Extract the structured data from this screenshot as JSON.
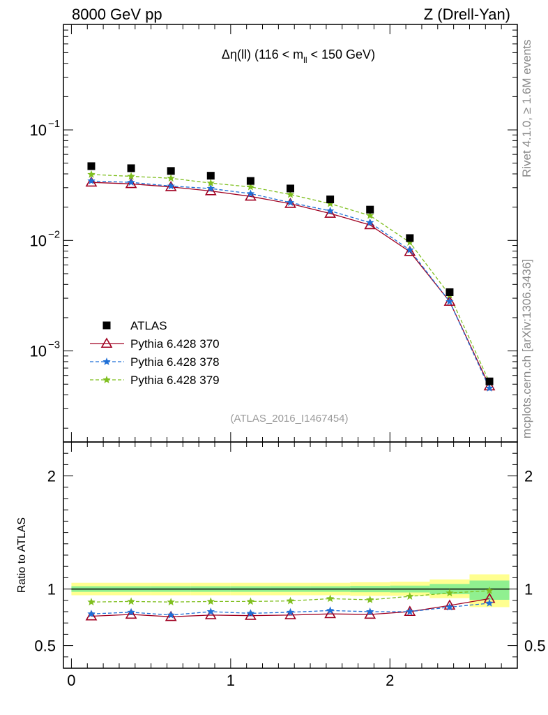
{
  "header": {
    "left_label": "8000 GeV pp",
    "right_label": "Z (Drell-Yan)"
  },
  "side_labels": {
    "rivet": "Rivet 4.1.0, ≥ 1.6M events",
    "mcplots": "mcplots.cern.ch [arXiv:1306.3436]"
  },
  "analysis_ref": "(ATLAS_2016_I1467454)",
  "colors": {
    "atlas": "#000000",
    "p370": "#a00020",
    "p378": "#1f6fd6",
    "p379": "#7fbf1f",
    "band_yellow": "#ffff90",
    "band_green": "#90f090"
  },
  "chart_data": [
    {
      "type": "scatter",
      "title": "Δη(ll) (116 < m_ll < 150 GeV)",
      "title_parts": {
        "lhs": "Δη(ll) (116 < m",
        "sub": "ll",
        "rhs": " < 150 GeV)"
      },
      "xlabel": "",
      "ylabel": "",
      "yscale": "log",
      "xlim": [
        -0.05,
        2.8
      ],
      "ylim": [
        0.00015,
        0.9
      ],
      "yticks": [
        0.001,
        0.01,
        0.1
      ],
      "ytick_labels": [
        {
          "base": "10",
          "exp": "−3"
        },
        {
          "base": "10",
          "exp": "−2"
        },
        {
          "base": "10",
          "exp": "−1"
        }
      ],
      "x": [
        0.125,
        0.375,
        0.625,
        0.875,
        1.125,
        1.375,
        1.625,
        1.875,
        2.125,
        2.375,
        2.625
      ],
      "series": [
        {
          "name": "ATLAS",
          "key": "atlas",
          "marker": "square",
          "line": "none",
          "values": [
            0.047,
            0.045,
            0.0425,
            0.0385,
            0.0345,
            0.0295,
            0.0235,
            0.019,
            0.0105,
            0.0034,
            0.00053
          ]
        },
        {
          "name": "Pythia 6.428 370",
          "key": "p370",
          "marker": "triangle-open",
          "line": "solid",
          "values": [
            0.0335,
            0.0325,
            0.0305,
            0.028,
            0.025,
            0.0215,
            0.0175,
            0.0138,
            0.0079,
            0.0028,
            0.00048
          ]
        },
        {
          "name": "Pythia 6.428 378",
          "key": "p378",
          "marker": "star",
          "line": "dashed",
          "values": [
            0.0345,
            0.0335,
            0.031,
            0.0295,
            0.0265,
            0.022,
            0.0185,
            0.0145,
            0.0082,
            0.0028,
            0.00046
          ]
        },
        {
          "name": "Pythia 6.428 379",
          "key": "p379",
          "marker": "star",
          "line": "dashed",
          "values": [
            0.0395,
            0.038,
            0.0365,
            0.033,
            0.0305,
            0.026,
            0.0215,
            0.0168,
            0.0096,
            0.0032,
            0.00052
          ]
        }
      ],
      "legend_position": "lower-left"
    },
    {
      "type": "scatter",
      "ylabel": "Ratio to ATLAS",
      "xlim": [
        -0.05,
        2.8
      ],
      "ylim": [
        0.3,
        2.3
      ],
      "yticks": [
        0.5,
        1,
        2
      ],
      "ytick_labels": [
        "0.5",
        "1",
        "2"
      ],
      "xticks": [
        0,
        1,
        2
      ],
      "xtick_labels": [
        "0",
        "1",
        "2"
      ],
      "x_edges": [
        0,
        0.25,
        0.5,
        0.75,
        1.0,
        1.25,
        1.5,
        1.75,
        2.0,
        2.25,
        2.5,
        2.75
      ],
      "x": [
        0.125,
        0.375,
        0.625,
        0.875,
        1.125,
        1.375,
        1.625,
        1.875,
        2.125,
        2.375,
        2.625
      ],
      "band_total": [
        [
          0.945,
          1.055
        ],
        [
          0.945,
          1.055
        ],
        [
          0.945,
          1.055
        ],
        [
          0.945,
          1.055
        ],
        [
          0.945,
          1.055
        ],
        [
          0.945,
          1.055
        ],
        [
          0.945,
          1.055
        ],
        [
          0.94,
          1.06
        ],
        [
          0.94,
          1.065
        ],
        [
          0.92,
          1.085
        ],
        [
          0.84,
          1.13
        ]
      ],
      "band_stat": [
        [
          0.975,
          1.025
        ],
        [
          0.975,
          1.025
        ],
        [
          0.975,
          1.025
        ],
        [
          0.975,
          1.025
        ],
        [
          0.975,
          1.025
        ],
        [
          0.975,
          1.025
        ],
        [
          0.975,
          1.025
        ],
        [
          0.972,
          1.028
        ],
        [
          0.97,
          1.03
        ],
        [
          0.955,
          1.045
        ],
        [
          0.905,
          1.075
        ]
      ],
      "series": [
        {
          "name": "Pythia 6.428 370",
          "key": "p370",
          "marker": "triangle-open",
          "line": "solid",
          "values": [
            0.76,
            0.775,
            0.755,
            0.77,
            0.765,
            0.77,
            0.78,
            0.775,
            0.8,
            0.855,
            0.915
          ]
        },
        {
          "name": "Pythia 6.428 378",
          "key": "p378",
          "marker": "star",
          "line": "dashed",
          "values": [
            0.78,
            0.795,
            0.77,
            0.8,
            0.785,
            0.795,
            0.81,
            0.8,
            0.8,
            0.84,
            0.875
          ]
        },
        {
          "name": "Pythia 6.428 379",
          "key": "p379",
          "marker": "star",
          "line": "dashed",
          "values": [
            0.885,
            0.89,
            0.885,
            0.89,
            0.89,
            0.895,
            0.915,
            0.905,
            0.935,
            0.965,
            0.985
          ]
        }
      ]
    }
  ]
}
